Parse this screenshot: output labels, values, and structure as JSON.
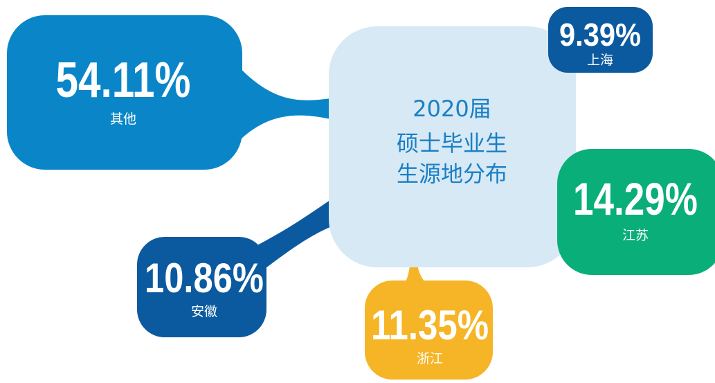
{
  "center": {
    "lines": [
      "2020届",
      "硕士毕业生",
      "生源地分布"
    ]
  },
  "nodes": [
    {
      "value": "54.11%",
      "label": "其他"
    },
    {
      "value": "9.39%",
      "label": "上海"
    },
    {
      "value": "14.29%",
      "label": "江苏"
    },
    {
      "value": "10.86%",
      "label": "安徽"
    },
    {
      "value": "11.35%",
      "label": "浙江"
    }
  ]
}
